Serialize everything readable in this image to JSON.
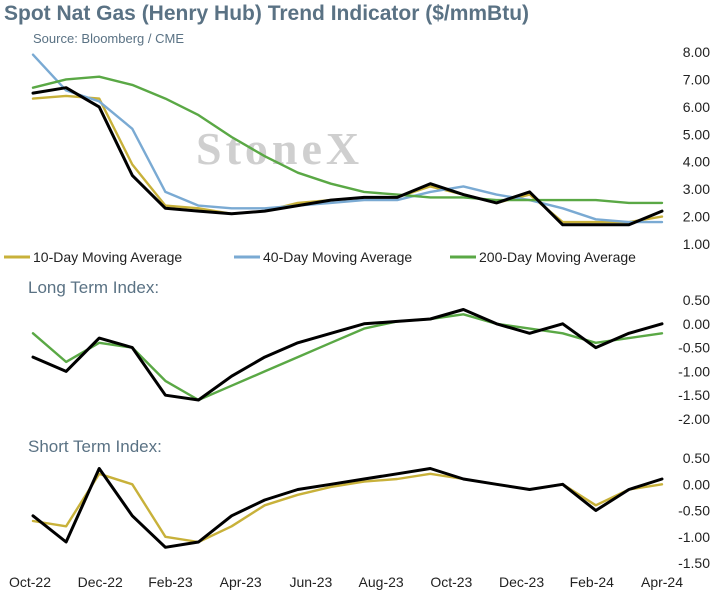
{
  "title": "Spot Nat Gas (Henry Hub) Trend Indicator ($/mmBtu)",
  "source": "Source: Bloomberg / CME",
  "watermark": "StoneX",
  "colors": {
    "spot": "#000000",
    "ma10": "#c8b13a",
    "ma40": "#7aaad3",
    "ma200": "#5aa845",
    "text": "#5a7284"
  },
  "x_axis": {
    "labels": [
      "Oct-22",
      "Dec-22",
      "Feb-23",
      "Apr-23",
      "Jun-23",
      "Aug-23",
      "Oct-23",
      "Dec-23",
      "Feb-24",
      "Apr-24"
    ]
  },
  "chart_data": [
    {
      "type": "line",
      "title": "Spot Nat Gas (Henry Hub) Trend Indicator ($/mmBtu)",
      "ylim": [
        1.0,
        8.0
      ],
      "ytick_labels": [
        "8.00",
        "7.00",
        "6.00",
        "5.00",
        "4.00",
        "3.00",
        "2.00",
        "1.00"
      ],
      "legend": [
        "10-Day Moving Average",
        "40-Day Moving Average",
        "200-Day Moving Average"
      ],
      "x": [
        "Oct-22",
        "Nov-22",
        "Dec-22",
        "Jan-23",
        "Feb-23",
        "Mar-23",
        "Apr-23",
        "May-23",
        "Jun-23",
        "Jul-23",
        "Aug-23",
        "Sep-23",
        "Oct-23",
        "Nov-23",
        "Dec-23",
        "Jan-24",
        "Feb-24",
        "Mar-24",
        "Apr-24",
        "May-24"
      ],
      "series": [
        {
          "key": "spot",
          "values": [
            6.5,
            6.7,
            6.0,
            3.5,
            2.3,
            2.2,
            2.1,
            2.2,
            2.4,
            2.6,
            2.7,
            2.7,
            3.2,
            2.8,
            2.5,
            2.9,
            1.7,
            1.7,
            1.7,
            2.2
          ]
        },
        {
          "key": "ma10",
          "name": "10-Day Moving Average",
          "values": [
            6.3,
            6.4,
            6.3,
            3.9,
            2.4,
            2.3,
            2.1,
            2.2,
            2.5,
            2.6,
            2.7,
            2.7,
            3.1,
            2.8,
            2.5,
            2.8,
            1.8,
            1.8,
            1.8,
            2.0
          ]
        },
        {
          "key": "ma40",
          "name": "40-Day Moving Average",
          "values": [
            7.9,
            6.6,
            6.2,
            5.2,
            2.9,
            2.4,
            2.3,
            2.3,
            2.4,
            2.5,
            2.6,
            2.6,
            2.9,
            3.1,
            2.8,
            2.6,
            2.3,
            1.9,
            1.8,
            1.8
          ]
        },
        {
          "key": "ma200",
          "name": "200-Day Moving Average",
          "values": [
            6.7,
            7.0,
            7.1,
            6.8,
            6.3,
            5.7,
            4.9,
            4.2,
            3.6,
            3.2,
            2.9,
            2.8,
            2.7,
            2.7,
            2.6,
            2.6,
            2.6,
            2.6,
            2.5,
            2.5
          ]
        }
      ]
    },
    {
      "type": "line",
      "title": "Long Term Index:",
      "ylim": [
        -2.0,
        0.5
      ],
      "ytick_labels": [
        "0.50",
        "0.00",
        "-0.50",
        "-1.00",
        "-1.50",
        "-2.00"
      ],
      "x": [
        "Oct-22",
        "Nov-22",
        "Dec-22",
        "Jan-23",
        "Feb-23",
        "Mar-23",
        "Apr-23",
        "May-23",
        "Jun-23",
        "Jul-23",
        "Aug-23",
        "Sep-23",
        "Oct-23",
        "Nov-23",
        "Dec-23",
        "Jan-24",
        "Feb-24",
        "Mar-24",
        "Apr-24",
        "May-24"
      ],
      "series": [
        {
          "key": "spot",
          "values": [
            -0.7,
            -1.0,
            -0.3,
            -0.5,
            -1.5,
            -1.6,
            -1.1,
            -0.7,
            -0.4,
            -0.2,
            0.0,
            0.05,
            0.1,
            0.3,
            0.0,
            -0.2,
            0.0,
            -0.5,
            -0.2,
            0.0
          ]
        },
        {
          "key": "ma200",
          "values": [
            -0.2,
            -0.8,
            -0.4,
            -0.5,
            -1.2,
            -1.6,
            -1.3,
            -1.0,
            -0.7,
            -0.4,
            -0.1,
            0.05,
            0.1,
            0.2,
            0.0,
            -0.1,
            -0.2,
            -0.4,
            -0.3,
            -0.2
          ]
        }
      ]
    },
    {
      "type": "line",
      "title": "Short Term Index:",
      "ylim": [
        -1.5,
        0.5
      ],
      "ytick_labels": [
        "0.50",
        "0.00",
        "-0.50",
        "-1.00",
        "-1.50"
      ],
      "x": [
        "Oct-22",
        "Nov-22",
        "Dec-22",
        "Jan-23",
        "Feb-23",
        "Mar-23",
        "Apr-23",
        "May-23",
        "Jun-23",
        "Jul-23",
        "Aug-23",
        "Sep-23",
        "Oct-23",
        "Nov-23",
        "Dec-23",
        "Jan-24",
        "Feb-24",
        "Mar-24",
        "Apr-24",
        "May-24"
      ],
      "series": [
        {
          "key": "spot",
          "values": [
            -0.6,
            -1.1,
            0.3,
            -0.6,
            -1.2,
            -1.1,
            -0.6,
            -0.3,
            -0.1,
            0.0,
            0.1,
            0.2,
            0.3,
            0.1,
            0.0,
            -0.1,
            0.0,
            -0.5,
            -0.1,
            0.1
          ]
        },
        {
          "key": "ma10",
          "values": [
            -0.7,
            -0.8,
            0.2,
            0.0,
            -1.0,
            -1.1,
            -0.8,
            -0.4,
            -0.2,
            -0.05,
            0.05,
            0.1,
            0.2,
            0.1,
            0.0,
            -0.1,
            0.0,
            -0.4,
            -0.1,
            0.0
          ]
        }
      ]
    }
  ]
}
